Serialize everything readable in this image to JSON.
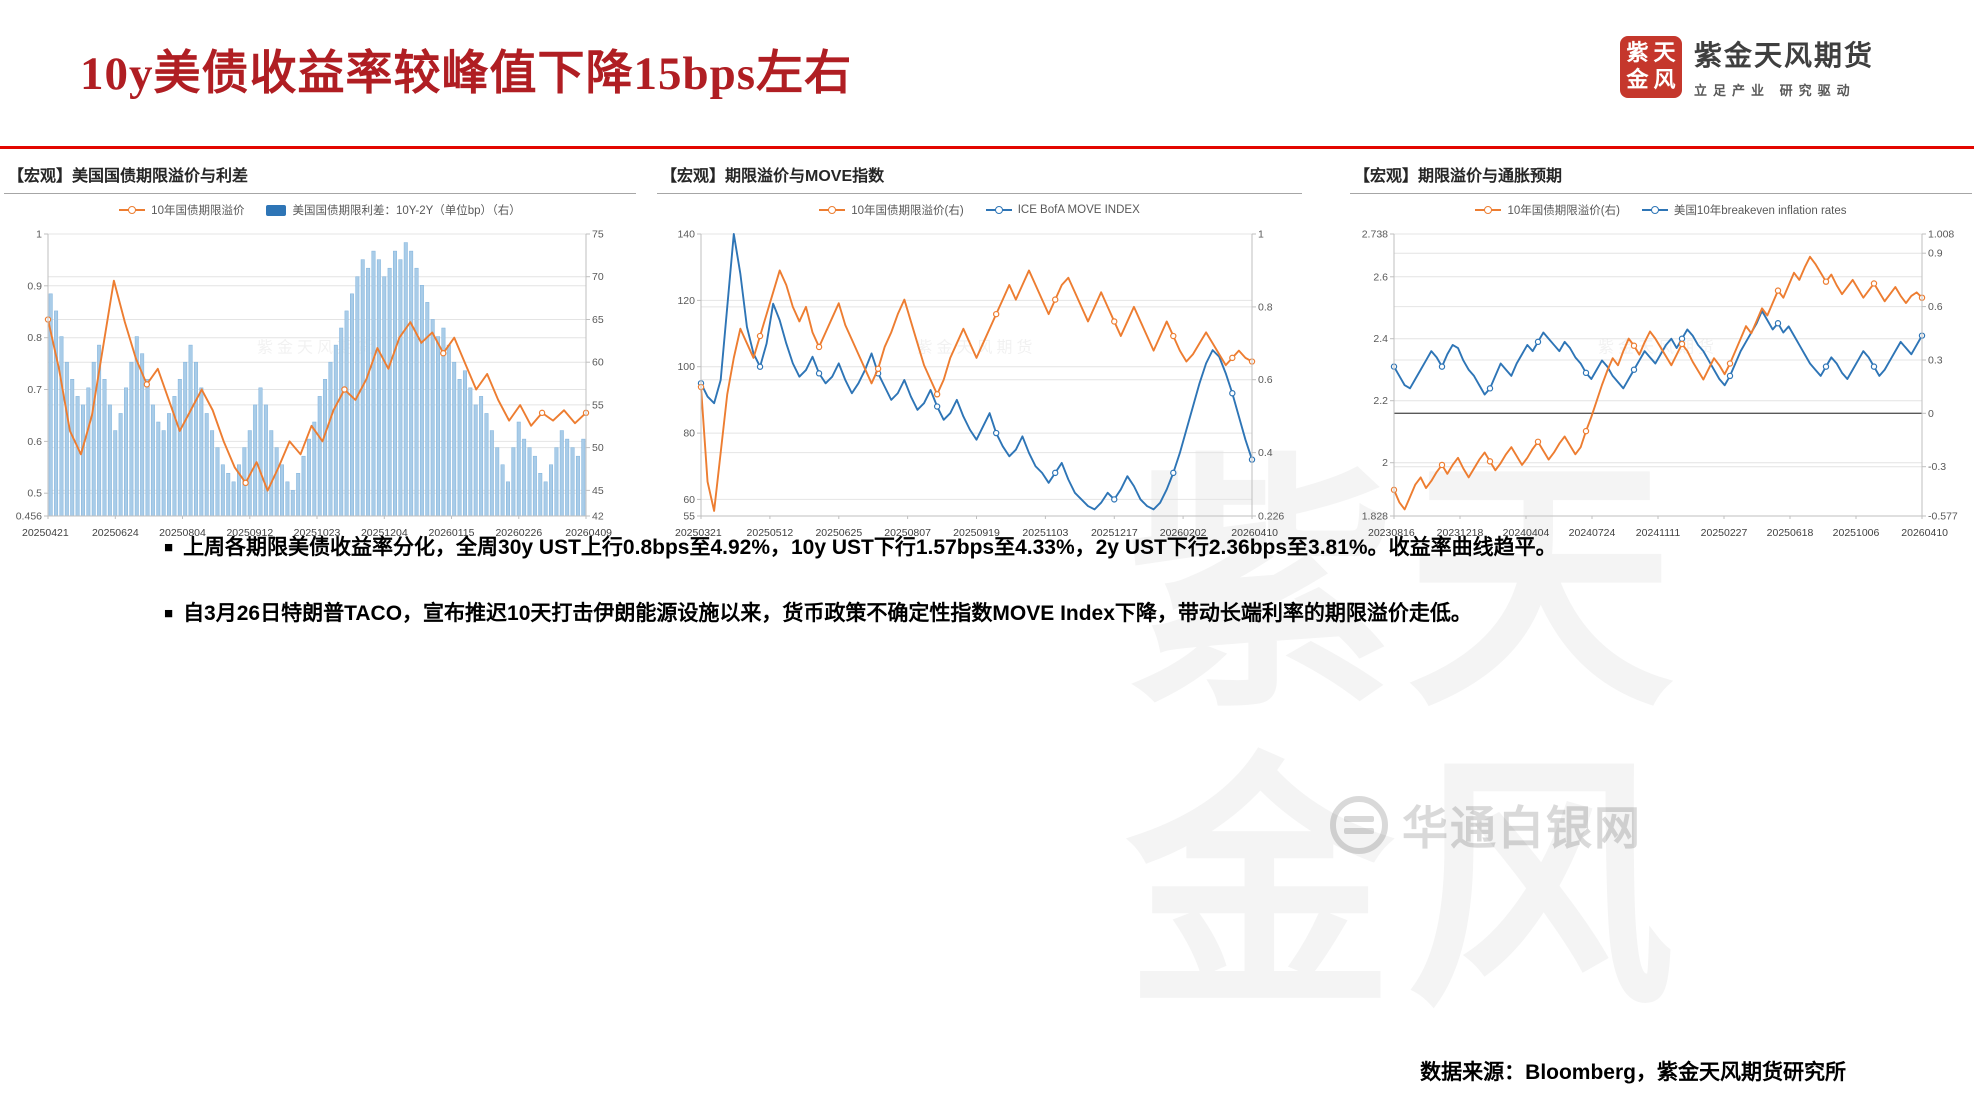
{
  "page": {
    "title": "10y美债收益率较峰值下降15bps左右",
    "logo": {
      "brand": "紫金天风期货",
      "tagline": "立足产业 研究驱动",
      "seal": [
        "紫",
        "天",
        "金",
        "风"
      ]
    },
    "bullet_marker": "■",
    "bullets": [
      "上周各期限美债收益率分化，全周30y UST上行0.8bps至4.92%，10y UST下行1.57bps至4.33%，2y UST下行2.36bps至3.81%。收益率曲线趋平。",
      "自3月26日特朗普TACO，宣布推迟10天打击伊朗能源设施以来，货币政策不确定性指数MOVE Index下降，带动长端利率的期限溢价走低。"
    ],
    "source_note": "数据来源：Bloomberg，紫金天风期货研究所",
    "chart_watermark": "紫金天风期货",
    "watermark": {
      "corner_text": "华通白银网"
    }
  },
  "colors": {
    "title_red": "#B01E23",
    "rule_red": "#E30600",
    "orange": "#ED7D31",
    "blue_line": "#2E75B6",
    "bar_fill": "#A9CCE8",
    "bar_stroke": "#7FB2DC",
    "grid": "#E4E4E4",
    "axis_text": "#595959"
  },
  "chart_data": [
    {
      "type": "bar+line combo",
      "title": "【宏观】美国国债期限溢价与利差",
      "legend": [
        {
          "label": "10年国债期限溢价",
          "marker": "line-circle",
          "color": "#ED7D31"
        },
        {
          "label": "美国国债期限利差：10Y-2Y（单位bp）（右）",
          "marker": "square",
          "color": "#2E75B6"
        }
      ],
      "x_ticks": [
        "20250421",
        "20250624",
        "20250804",
        "20250912",
        "20251023",
        "20251204",
        "20260115",
        "20260226",
        "20260409"
      ],
      "left_axis": {
        "min": 0.456,
        "max": 1,
        "ticks": [
          "1",
          "0.9",
          "0.8",
          "0.7",
          "0.6",
          "0.5",
          "0.456"
        ]
      },
      "right_axis": {
        "min": 42,
        "max": 75,
        "ticks": [
          "75",
          "70",
          "65",
          "60",
          "55",
          "50",
          "45",
          "42"
        ]
      },
      "grid": true,
      "legend_position": "top",
      "series": [
        {
          "name": "美国国债期限利差：10Y-2Y（单位bp）",
          "type": "bar",
          "axis": "right",
          "color": "#A9CCE8",
          "stroke": "#7FB2DC",
          "values": [
            68,
            66,
            63,
            60,
            58,
            56,
            55,
            57,
            60,
            62,
            58,
            55,
            52,
            54,
            57,
            60,
            63,
            61,
            58,
            55,
            53,
            52,
            54,
            56,
            58,
            60,
            62,
            60,
            57,
            54,
            52,
            50,
            48,
            47,
            46,
            48,
            50,
            52,
            55,
            57,
            55,
            52,
            50,
            48,
            46,
            45,
            47,
            49,
            51,
            53,
            56,
            58,
            60,
            62,
            64,
            66,
            68,
            70,
            72,
            71,
            73,
            72,
            70,
            71,
            73,
            72,
            74,
            73,
            71,
            69,
            67,
            65,
            63,
            64,
            62,
            60,
            58,
            59,
            57,
            55,
            56,
            54,
            52,
            50,
            48,
            46,
            50,
            53,
            51,
            50,
            49,
            47,
            46,
            48,
            50,
            52,
            51,
            50,
            49,
            51
          ]
        },
        {
          "name": "10年国债期限溢价",
          "type": "line",
          "axis": "left",
          "color": "#ED7D31",
          "values": [
            0.835,
            0.74,
            0.62,
            0.575,
            0.65,
            0.78,
            0.91,
            0.83,
            0.76,
            0.71,
            0.74,
            0.68,
            0.62,
            0.66,
            0.7,
            0.66,
            0.6,
            0.55,
            0.52,
            0.56,
            0.505,
            0.55,
            0.6,
            0.575,
            0.63,
            0.6,
            0.66,
            0.7,
            0.68,
            0.72,
            0.78,
            0.74,
            0.8,
            0.83,
            0.79,
            0.81,
            0.77,
            0.8,
            0.75,
            0.7,
            0.73,
            0.68,
            0.64,
            0.67,
            0.63,
            0.655,
            0.64,
            0.66,
            0.635,
            0.655
          ]
        }
      ]
    },
    {
      "type": "line",
      "title": "【宏观】期限溢价与MOVE指数",
      "legend": [
        {
          "label": "10年国债期限溢价(右)",
          "marker": "line-circle",
          "color": "#ED7D31"
        },
        {
          "label": "ICE BofA MOVE INDEX",
          "marker": "line-circle",
          "color": "#2E75B6"
        }
      ],
      "x_ticks": [
        "20250321",
        "20250512",
        "20250625",
        "20250807",
        "20250919",
        "20251103",
        "20251217",
        "20260202",
        "20260410"
      ],
      "left_axis": {
        "min": 55,
        "max": 140,
        "ticks": [
          "140",
          "120",
          "100",
          "80",
          "60",
          "55"
        ]
      },
      "right_axis": {
        "min": 0.226,
        "max": 1,
        "ticks": [
          "1",
          "0.8",
          "0.6",
          "0.4",
          "0.226"
        ]
      },
      "grid": true,
      "legend_position": "top",
      "series": [
        {
          "name": "ICE BofA MOVE INDEX",
          "type": "line",
          "axis": "left",
          "color": "#2E75B6",
          "values": [
            95,
            91,
            89,
            96,
            118,
            140,
            128,
            112,
            104,
            100,
            107,
            119,
            114,
            107,
            101,
            97,
            99,
            103,
            98,
            95,
            97,
            101,
            96,
            92,
            95,
            99,
            104,
            98,
            94,
            90,
            92,
            96,
            91,
            87,
            89,
            93,
            88,
            84,
            86,
            90,
            85,
            81,
            78,
            82,
            86,
            80,
            76,
            73,
            75,
            79,
            74,
            70,
            68,
            65,
            68,
            71,
            66,
            62,
            60,
            58,
            57,
            59,
            62,
            60,
            63,
            67,
            64,
            60,
            58,
            57,
            59,
            63,
            68,
            74,
            81,
            88,
            95,
            101,
            105,
            103,
            98,
            92,
            85,
            78,
            72
          ]
        },
        {
          "name": "10年国债期限溢价(右)",
          "type": "line",
          "axis": "right",
          "color": "#ED7D31",
          "values": [
            0.58,
            0.32,
            0.24,
            0.4,
            0.56,
            0.66,
            0.74,
            0.7,
            0.66,
            0.72,
            0.78,
            0.84,
            0.9,
            0.86,
            0.8,
            0.76,
            0.8,
            0.73,
            0.69,
            0.73,
            0.77,
            0.81,
            0.75,
            0.71,
            0.67,
            0.63,
            0.59,
            0.63,
            0.69,
            0.73,
            0.78,
            0.82,
            0.76,
            0.7,
            0.64,
            0.6,
            0.56,
            0.6,
            0.66,
            0.7,
            0.74,
            0.7,
            0.66,
            0.7,
            0.74,
            0.78,
            0.82,
            0.86,
            0.82,
            0.86,
            0.9,
            0.86,
            0.82,
            0.78,
            0.82,
            0.86,
            0.88,
            0.84,
            0.8,
            0.76,
            0.8,
            0.84,
            0.8,
            0.76,
            0.72,
            0.76,
            0.8,
            0.76,
            0.72,
            0.68,
            0.72,
            0.76,
            0.72,
            0.68,
            0.65,
            0.67,
            0.7,
            0.73,
            0.7,
            0.67,
            0.64,
            0.66,
            0.68,
            0.66,
            0.65
          ]
        }
      ]
    },
    {
      "type": "line",
      "title": "【宏观】期限溢价与通胀预期",
      "legend": [
        {
          "label": "10年国债期限溢价(右)",
          "marker": "line-circle",
          "color": "#ED7D31"
        },
        {
          "label": "美国10年breakeven inflation rates",
          "marker": "line-circle",
          "color": "#2E75B6"
        }
      ],
      "x_ticks": [
        "20230816",
        "20231218",
        "20240404",
        "20240724",
        "20241111",
        "20250227",
        "20250618",
        "20251006",
        "20260410"
      ],
      "left_axis": {
        "min": 1.828,
        "max": 2.738,
        "ticks": [
          "2.738",
          "2.6",
          "2.4",
          "2.2",
          "2",
          "1.828"
        ]
      },
      "right_axis": {
        "min": -0.577,
        "max": 1.008,
        "ticks": [
          "1.008",
          "0.9",
          "0.6",
          "0.3",
          "0",
          "-0.3",
          "-0.577"
        ]
      },
      "zero_line_right": 0,
      "grid": true,
      "legend_position": "top",
      "series": [
        {
          "name": "美国10年breakeven inflation rates",
          "type": "line",
          "axis": "left",
          "color": "#2E75B6",
          "values": [
            2.31,
            2.28,
            2.25,
            2.24,
            2.27,
            2.3,
            2.33,
            2.36,
            2.34,
            2.31,
            2.35,
            2.38,
            2.37,
            2.33,
            2.3,
            2.28,
            2.25,
            2.22,
            2.24,
            2.28,
            2.32,
            2.3,
            2.28,
            2.32,
            2.35,
            2.38,
            2.36,
            2.39,
            2.42,
            2.4,
            2.38,
            2.36,
            2.39,
            2.37,
            2.34,
            2.32,
            2.29,
            2.27,
            2.3,
            2.33,
            2.31,
            2.28,
            2.26,
            2.24,
            2.27,
            2.3,
            2.33,
            2.36,
            2.34,
            2.32,
            2.35,
            2.38,
            2.4,
            2.37,
            2.4,
            2.43,
            2.41,
            2.38,
            2.36,
            2.33,
            2.3,
            2.27,
            2.25,
            2.28,
            2.32,
            2.36,
            2.39,
            2.42,
            2.45,
            2.49,
            2.46,
            2.43,
            2.45,
            2.42,
            2.44,
            2.41,
            2.38,
            2.35,
            2.32,
            2.3,
            2.28,
            2.31,
            2.34,
            2.32,
            2.29,
            2.27,
            2.3,
            2.33,
            2.36,
            2.34,
            2.31,
            2.28,
            2.3,
            2.33,
            2.36,
            2.39,
            2.37,
            2.35,
            2.38,
            2.41
          ]
        },
        {
          "name": "10年国债期限溢价(右)",
          "type": "line",
          "axis": "right",
          "color": "#ED7D31",
          "values": [
            -0.43,
            -0.5,
            -0.54,
            -0.47,
            -0.4,
            -0.36,
            -0.42,
            -0.38,
            -0.33,
            -0.29,
            -0.34,
            -0.29,
            -0.25,
            -0.31,
            -0.36,
            -0.31,
            -0.26,
            -0.22,
            -0.27,
            -0.32,
            -0.28,
            -0.23,
            -0.19,
            -0.24,
            -0.29,
            -0.25,
            -0.2,
            -0.16,
            -0.21,
            -0.26,
            -0.22,
            -0.17,
            -0.13,
            -0.18,
            -0.23,
            -0.19,
            -0.1,
            -0.02,
            0.07,
            0.16,
            0.24,
            0.31,
            0.27,
            0.35,
            0.42,
            0.38,
            0.33,
            0.4,
            0.46,
            0.42,
            0.37,
            0.32,
            0.27,
            0.33,
            0.39,
            0.35,
            0.29,
            0.24,
            0.19,
            0.25,
            0.31,
            0.27,
            0.22,
            0.28,
            0.35,
            0.42,
            0.49,
            0.45,
            0.52,
            0.59,
            0.55,
            0.62,
            0.69,
            0.65,
            0.72,
            0.79,
            0.75,
            0.82,
            0.88,
            0.84,
            0.79,
            0.74,
            0.78,
            0.72,
            0.67,
            0.71,
            0.75,
            0.7,
            0.65,
            0.69,
            0.73,
            0.68,
            0.63,
            0.67,
            0.71,
            0.66,
            0.62,
            0.66,
            0.68,
            0.65
          ]
        }
      ]
    }
  ]
}
